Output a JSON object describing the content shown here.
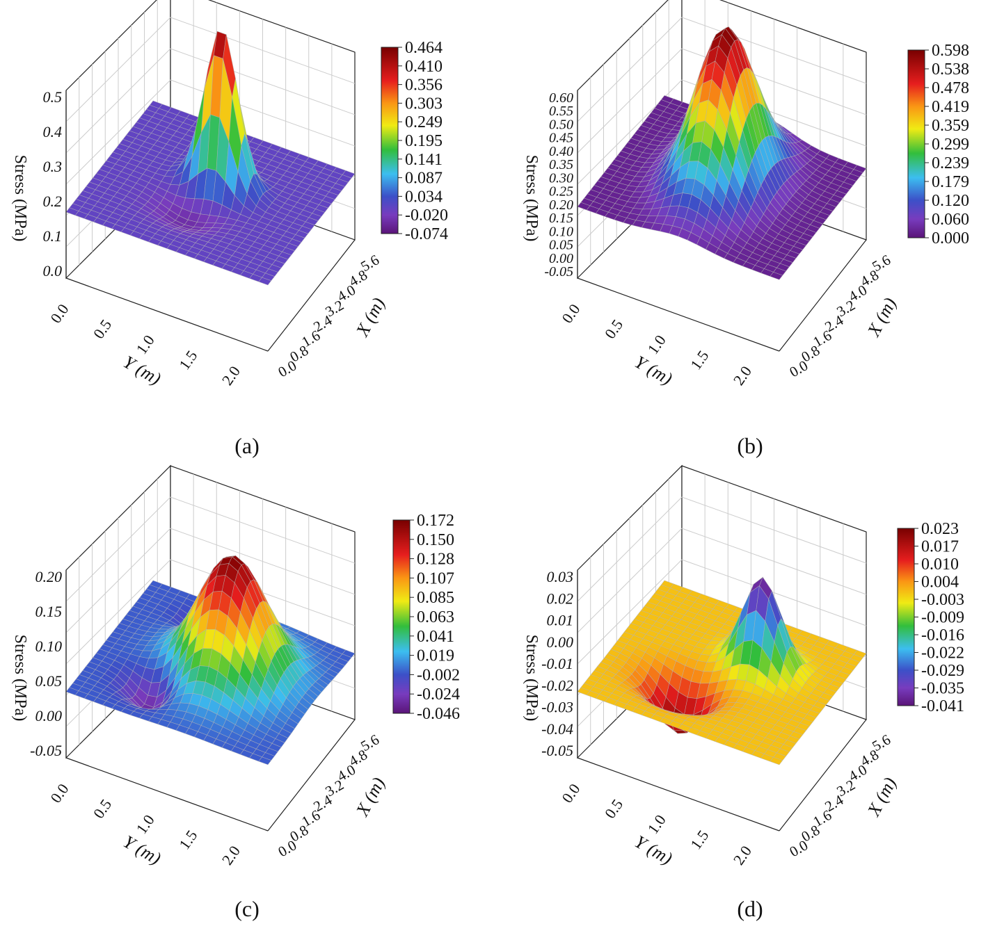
{
  "figure": {
    "panels": [
      {
        "caption": "(a)",
        "colorbar": [
          "0.464",
          "0.410",
          "0.356",
          "0.303",
          "0.249",
          "0.195",
          "0.141",
          "0.087",
          "0.034",
          "-0.020",
          "-0.074"
        ]
      },
      {
        "caption": "(b)",
        "colorbar": [
          "0.598",
          "0.538",
          "0.478",
          "0.419",
          "0.359",
          "0.299",
          "0.239",
          "0.179",
          "0.120",
          "0.060",
          "0.000"
        ]
      },
      {
        "caption": "(c)",
        "colorbar": [
          "0.172",
          "0.150",
          "0.128",
          "0.107",
          "0.085",
          "0.063",
          "0.041",
          "0.019",
          "-0.002",
          "-0.024",
          "-0.046"
        ]
      },
      {
        "caption": "(d)",
        "colorbar": [
          "0.023",
          "0.017",
          "0.010",
          "0.004",
          "-0.003",
          "-0.009",
          "-0.016",
          "-0.022",
          "-0.029",
          "-0.035",
          "-0.041"
        ]
      }
    ]
  },
  "chart_data": [
    {
      "type": "surface3d",
      "title": "(a)",
      "zlabel": "Stress (MPa)",
      "xlabel": "X (m)",
      "ylabel": "Y (m)",
      "z_ticks": [
        "0.0",
        "0.1",
        "0.2",
        "0.3",
        "0.4",
        "0.5"
      ],
      "x_ticks": [
        "0.0",
        "0.8",
        "1.6",
        "2.4",
        "3.2",
        "4.0",
        "4.8",
        "5.6"
      ],
      "y_ticks": [
        "0.0",
        "0.5",
        "1.0",
        "1.5",
        "2.0"
      ],
      "zlim": [
        0,
        0.5
      ],
      "xlim": [
        0,
        5.6
      ],
      "ylim": [
        0,
        2.2
      ],
      "colorbar_range": [
        -0.074,
        0.464
      ],
      "base_value": 0.0,
      "peak": {
        "x": 3.2,
        "y": 1.1,
        "value": 0.46
      },
      "features": [
        "narrow sharp peak near centre",
        "slight negative depression in front of peak"
      ]
    },
    {
      "type": "surface3d",
      "title": "(b)",
      "zlabel": "Stress (MPa)",
      "xlabel": "X (m)",
      "ylabel": "Y (m)",
      "z_ticks": [
        "-0.05",
        "0.00",
        "0.05",
        "0.10",
        "0.15",
        "0.20",
        "0.25",
        "0.30",
        "0.35",
        "0.40",
        "0.45",
        "0.50",
        "0.55",
        "0.60"
      ],
      "x_ticks": [
        "0.0",
        "0.8",
        "1.6",
        "2.4",
        "3.2",
        "4.0",
        "4.8",
        "5.6"
      ],
      "y_ticks": [
        "0.0",
        "0.5",
        "1.0",
        "1.5",
        "2.0"
      ],
      "zlim": [
        -0.05,
        0.6
      ],
      "xlim": [
        0,
        5.6
      ],
      "ylim": [
        0,
        2.2
      ],
      "colorbar_range": [
        0.0,
        0.598
      ],
      "base_value": 0.0,
      "peak": {
        "x": 3.2,
        "y": 1.1,
        "value": 0.598
      },
      "features": [
        "broad ridge extending across X",
        "low trough near Y 1.0"
      ]
    },
    {
      "type": "surface3d",
      "title": "(c)",
      "zlabel": "Stress (MPa)",
      "xlabel": "X (m)",
      "ylabel": "Y (m)",
      "z_ticks": [
        "-0.05",
        "0.00",
        "0.05",
        "0.10",
        "0.15",
        "0.20"
      ],
      "x_ticks": [
        "0.0",
        "0.8",
        "1.6",
        "2.4",
        "3.2",
        "4.0",
        "4.8",
        "5.6"
      ],
      "y_ticks": [
        "0.0",
        "0.5",
        "1.0",
        "1.5",
        "2.0"
      ],
      "zlim": [
        -0.05,
        0.2
      ],
      "xlim": [
        0,
        5.6
      ],
      "ylim": [
        0,
        2.2
      ],
      "colorbar_range": [
        -0.046,
        0.172
      ],
      "base_value": 0.0,
      "peak": {
        "x": 3.2,
        "y": 1.1,
        "value": 0.172
      },
      "features": [
        "broad peak",
        "two negative depressions beside the peak"
      ]
    },
    {
      "type": "surface3d",
      "title": "(d)",
      "zlabel": "Stress (MPa)",
      "xlabel": "X (m)",
      "ylabel": "Y (m)",
      "z_ticks": [
        "-0.05",
        "-0.04",
        "-0.03",
        "-0.02",
        "-0.01",
        "0.00",
        "0.01",
        "0.02",
        "0.03"
      ],
      "x_ticks": [
        "0.0",
        "0.8",
        "1.6",
        "2.4",
        "3.2",
        "4.0",
        "4.8",
        "5.6"
      ],
      "y_ticks": [
        "0.0",
        "0.5",
        "1.0",
        "1.5",
        "2.0"
      ],
      "zlim": [
        0.03,
        -0.05
      ],
      "xlim": [
        0,
        5.6
      ],
      "ylim": [
        0,
        2.2
      ],
      "colorbar_range": [
        -0.041,
        0.023
      ],
      "z_axis_inverted": true,
      "base_value": 0.0,
      "peak": {
        "x": 3.2,
        "y": 1.3,
        "value": -0.041
      },
      "features": [
        "negative peak drawn upward on inverted axis",
        "positive bowl in front of peak"
      ]
    }
  ]
}
